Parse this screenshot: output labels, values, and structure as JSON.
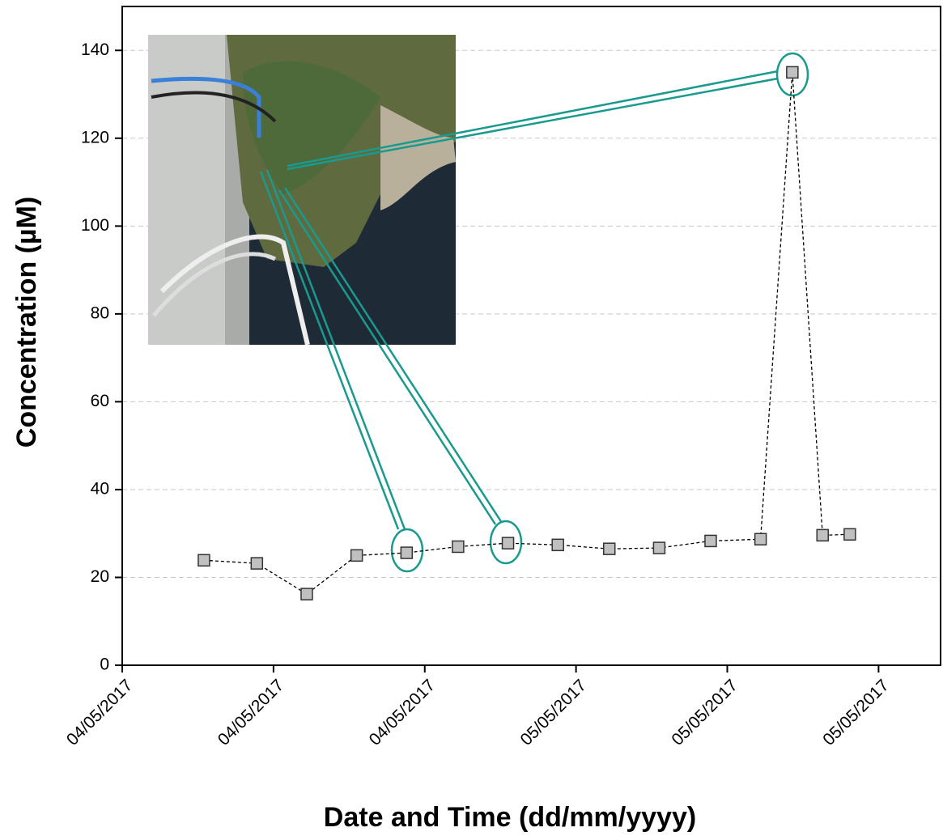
{
  "chart_data": {
    "type": "line",
    "x_label": "Date and Time (dd/mm/yyyy)",
    "y_label": "Concentration (µM)",
    "x": [
      0.54,
      0.89,
      1.22,
      1.55,
      1.88,
      2.22,
      2.55,
      2.88,
      3.22,
      3.55,
      3.89,
      4.22,
      4.43,
      4.63,
      4.81
    ],
    "series": [
      {
        "color": "#c0c0c0",
        "values": [
          23.9,
          23.2,
          16.2,
          25.0,
          25.6,
          27.0,
          27.8,
          27.4,
          26.5,
          26.7,
          28.3,
          28.7,
          135,
          29.6,
          29.8
        ]
      }
    ],
    "xlim": [
      0,
      5.41
    ],
    "xticks": [
      {
        "value": 0,
        "label": "04/05/2017"
      },
      {
        "value": 1,
        "label": "04/05/2017"
      },
      {
        "value": 2,
        "label": "04/05/2017"
      },
      {
        "value": 3,
        "label": "05/05/2017"
      },
      {
        "value": 4,
        "label": "05/05/2017"
      },
      {
        "value": 5,
        "label": "05/05/2017"
      }
    ],
    "ylim": [
      0,
      150
    ],
    "yticks": [
      0,
      20,
      40,
      60,
      80,
      100,
      120,
      140
    ],
    "grid": true
  }
}
